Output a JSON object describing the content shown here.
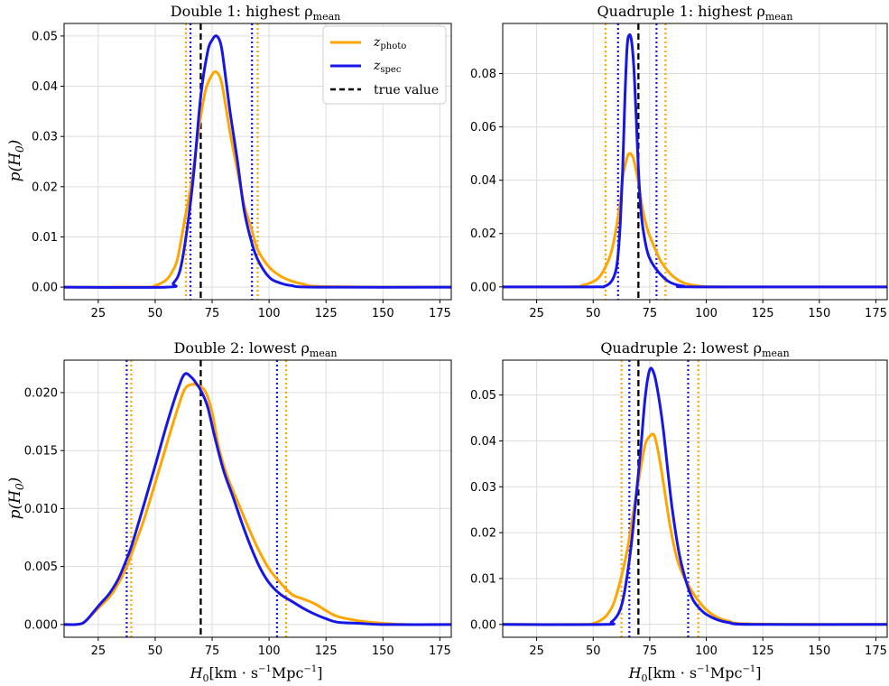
{
  "colors": {
    "photo": "#ffa500",
    "spec": "#1616e6",
    "truth": "#000000"
  },
  "legend": {
    "photo_main": "z",
    "photo_sub": "photo",
    "spec_main": "z",
    "spec_sub": "spec",
    "truth": "true value"
  },
  "labels": {
    "y_main": "p(H",
    "y_sub": "0",
    "y_end": ")",
    "x_main": "H",
    "x_sub": "0",
    "x_rest": "[km · s",
    "x_exp": "−1",
    "x_rest2": "Mpc",
    "x_exp2": "−1",
    "x_close": "]"
  },
  "chart_data": [
    {
      "type": "line",
      "title_main": "Double 1: highest ρ",
      "title_sub": "mean",
      "xlim": [
        10,
        180
      ],
      "ylim": [
        -0.0025,
        0.0525
      ],
      "xticks": [
        25,
        50,
        75,
        100,
        125,
        150,
        175
      ],
      "yticks": [
        0.0,
        0.01,
        0.02,
        0.03,
        0.04,
        0.05
      ],
      "ytick_labels": [
        "0.00",
        "0.01",
        "0.02",
        "0.03",
        "0.04",
        "0.05"
      ],
      "xlabel": "",
      "ylabel": "p(H0)",
      "true_value": 70,
      "series": [
        {
          "name": "z_photo",
          "color": "photo",
          "x": [
            10,
            45,
            50,
            55,
            58,
            60,
            63,
            66,
            69,
            72,
            75,
            77,
            79,
            81,
            83,
            86,
            89,
            92,
            95,
            100,
            105,
            110,
            115,
            125,
            180
          ],
          "values": [
            0,
            0,
            0.0003,
            0.0015,
            0.0035,
            0.006,
            0.0135,
            0.021,
            0.031,
            0.039,
            0.0423,
            0.0428,
            0.041,
            0.036,
            0.0305,
            0.0235,
            0.0165,
            0.012,
            0.0075,
            0.004,
            0.0022,
            0.0012,
            0.0006,
            0.0001,
            0
          ],
          "interval": [
            63.5,
            95
          ]
        },
        {
          "name": "z_spec",
          "color": "spec",
          "x": [
            10,
            55,
            58,
            61,
            64,
            67,
            70,
            73,
            75,
            77,
            79,
            81,
            83,
            86,
            89,
            92,
            95,
            100,
            105,
            110,
            120,
            180
          ],
          "values": [
            0,
            0,
            0.0008,
            0.0035,
            0.0115,
            0.023,
            0.038,
            0.0468,
            0.0492,
            0.05,
            0.048,
            0.0415,
            0.0345,
            0.0255,
            0.0155,
            0.0095,
            0.0055,
            0.002,
            0.0008,
            0.0003,
            0,
            0
          ],
          "interval": [
            65.5,
            92.5
          ]
        }
      ]
    },
    {
      "type": "line",
      "title_main": "Quadruple 1: highest ρ",
      "title_sub": "mean",
      "xlim": [
        10,
        180
      ],
      "ylim": [
        -0.0048,
        0.0988
      ],
      "xticks": [
        25,
        50,
        75,
        100,
        125,
        150,
        175
      ],
      "yticks": [
        0.0,
        0.02,
        0.04,
        0.06,
        0.08
      ],
      "ytick_labels": [
        "0.00",
        "0.02",
        "0.04",
        "0.06",
        "0.08"
      ],
      "xlabel": "",
      "ylabel": "",
      "true_value": 70,
      "series": [
        {
          "name": "z_photo",
          "color": "photo",
          "x": [
            10,
            40,
            45,
            50,
            53,
            56,
            58,
            60,
            62,
            63,
            65,
            66,
            67,
            68,
            70,
            72,
            74,
            76,
            78,
            80,
            83,
            86,
            90,
            95,
            100,
            110,
            180
          ],
          "values": [
            0,
            0,
            0.0005,
            0.002,
            0.004,
            0.0085,
            0.013,
            0.021,
            0.032,
            0.041,
            0.0485,
            0.05,
            0.0495,
            0.0475,
            0.039,
            0.0285,
            0.0215,
            0.017,
            0.013,
            0.0095,
            0.006,
            0.0035,
            0.0015,
            0.0005,
            0.0001,
            0,
            0
          ],
          "interval": [
            55.5,
            82
          ]
        },
        {
          "name": "z_spec",
          "color": "spec",
          "x": [
            10,
            50,
            55,
            58,
            60,
            61,
            62,
            63,
            64,
            65,
            66,
            67,
            68,
            69,
            70,
            71,
            72,
            74,
            76,
            78,
            80,
            83,
            86,
            90,
            95,
            180
          ],
          "values": [
            0,
            0,
            0.0002,
            0.002,
            0.006,
            0.012,
            0.024,
            0.043,
            0.07,
            0.09,
            0.0945,
            0.092,
            0.082,
            0.064,
            0.044,
            0.03,
            0.022,
            0.013,
            0.009,
            0.0065,
            0.0045,
            0.0022,
            0.001,
            0.0003,
            0,
            0
          ],
          "interval": [
            61,
            78
          ]
        }
      ]
    },
    {
      "type": "line",
      "title_main": "Double 2: lowest ρ",
      "title_sub": "mean",
      "xlim": [
        10,
        180
      ],
      "ylim": [
        -0.0011,
        0.0228
      ],
      "xticks": [
        25,
        50,
        75,
        100,
        125,
        150,
        175
      ],
      "yticks": [
        0.0,
        0.005,
        0.01,
        0.015,
        0.02
      ],
      "ytick_labels": [
        "0.000",
        "0.005",
        "0.010",
        "0.015",
        "0.020"
      ],
      "xlabel": "H0 [km·s−1Mpc−1]",
      "ylabel": "p(H0)",
      "true_value": 70,
      "series": [
        {
          "name": "z_photo",
          "color": "photo",
          "x": [
            10,
            15,
            18,
            20,
            23,
            26,
            30,
            34,
            38,
            40,
            45,
            50,
            55,
            60,
            63,
            66,
            69,
            72,
            75,
            78,
            82,
            86,
            90,
            95,
            100,
            105,
            110,
            115,
            120,
            125,
            130,
            140,
            150,
            160,
            180
          ],
          "values": [
            0,
            0,
            0.0001,
            0.0004,
            0.001,
            0.0016,
            0.0024,
            0.0036,
            0.0052,
            0.0063,
            0.009,
            0.0122,
            0.0155,
            0.0187,
            0.0203,
            0.0207,
            0.0206,
            0.0201,
            0.0183,
            0.0152,
            0.0126,
            0.0107,
            0.0088,
            0.0066,
            0.0048,
            0.0036,
            0.0026,
            0.0022,
            0.0018,
            0.0012,
            0.0007,
            0.0003,
            0.0001,
            0,
            0
          ],
          "interval": [
            39.5,
            107.5
          ]
        },
        {
          "name": "z_spec",
          "color": "spec",
          "x": [
            10,
            15,
            18,
            20,
            23,
            26,
            30,
            34,
            38,
            40,
            45,
            50,
            55,
            60,
            63,
            66,
            68,
            70,
            73,
            76,
            80,
            84,
            88,
            92,
            96,
            100,
            105,
            110,
            115,
            120,
            125,
            130,
            140,
            150,
            180
          ],
          "values": [
            0,
            0,
            0.0001,
            0.0004,
            0.0011,
            0.0018,
            0.0027,
            0.004,
            0.0059,
            0.007,
            0.0103,
            0.0137,
            0.0172,
            0.0203,
            0.0216,
            0.0213,
            0.0208,
            0.0202,
            0.0188,
            0.0163,
            0.0133,
            0.0111,
            0.0088,
            0.0067,
            0.0049,
            0.0036,
            0.0026,
            0.002,
            0.0014,
            0.0009,
            0.0005,
            0.0002,
            0.0001,
            0,
            0
          ],
          "interval": [
            37.5,
            103.5
          ]
        }
      ]
    },
    {
      "type": "line",
      "title_main": "Quadruple 2: lowest ρ",
      "title_sub": "mean",
      "xlim": [
        10,
        180
      ],
      "ylim": [
        -0.0028,
        0.0576
      ],
      "xticks": [
        25,
        50,
        75,
        100,
        125,
        150,
        175
      ],
      "yticks": [
        0.0,
        0.01,
        0.02,
        0.03,
        0.04,
        0.05
      ],
      "ytick_labels": [
        "0.00",
        "0.01",
        "0.02",
        "0.03",
        "0.04",
        "0.05"
      ],
      "xlabel": "H0 [km·s−1Mpc−1]",
      "ylabel": "",
      "true_value": 70,
      "series": [
        {
          "name": "z_photo",
          "color": "photo",
          "x": [
            10,
            45,
            50,
            53,
            56,
            59,
            62,
            65,
            68,
            71,
            73,
            75,
            77,
            79,
            81,
            84,
            87,
            90,
            93,
            96,
            100,
            105,
            110,
            120,
            180
          ],
          "values": [
            0,
            0,
            0.0002,
            0.0008,
            0.002,
            0.0045,
            0.0095,
            0.016,
            0.0252,
            0.034,
            0.0392,
            0.041,
            0.0412,
            0.037,
            0.031,
            0.0215,
            0.0145,
            0.0105,
            0.0078,
            0.0055,
            0.0032,
            0.0015,
            0.0007,
            0.0001,
            0
          ],
          "interval": [
            62.5,
            96.5
          ]
        },
        {
          "name": "z_spec",
          "color": "spec",
          "x": [
            10,
            55,
            58,
            61,
            63,
            65,
            67,
            69,
            71,
            73,
            75,
            77,
            79,
            81,
            83,
            85,
            88,
            91,
            94,
            97,
            100,
            105,
            110,
            120,
            180
          ],
          "values": [
            0,
            0,
            0.0005,
            0.0022,
            0.005,
            0.0105,
            0.018,
            0.028,
            0.038,
            0.0495,
            0.0555,
            0.0545,
            0.0495,
            0.0425,
            0.0335,
            0.025,
            0.0155,
            0.0095,
            0.0055,
            0.0035,
            0.0022,
            0.001,
            0.0004,
            0,
            0
          ],
          "interval": [
            66,
            92
          ]
        }
      ]
    }
  ]
}
